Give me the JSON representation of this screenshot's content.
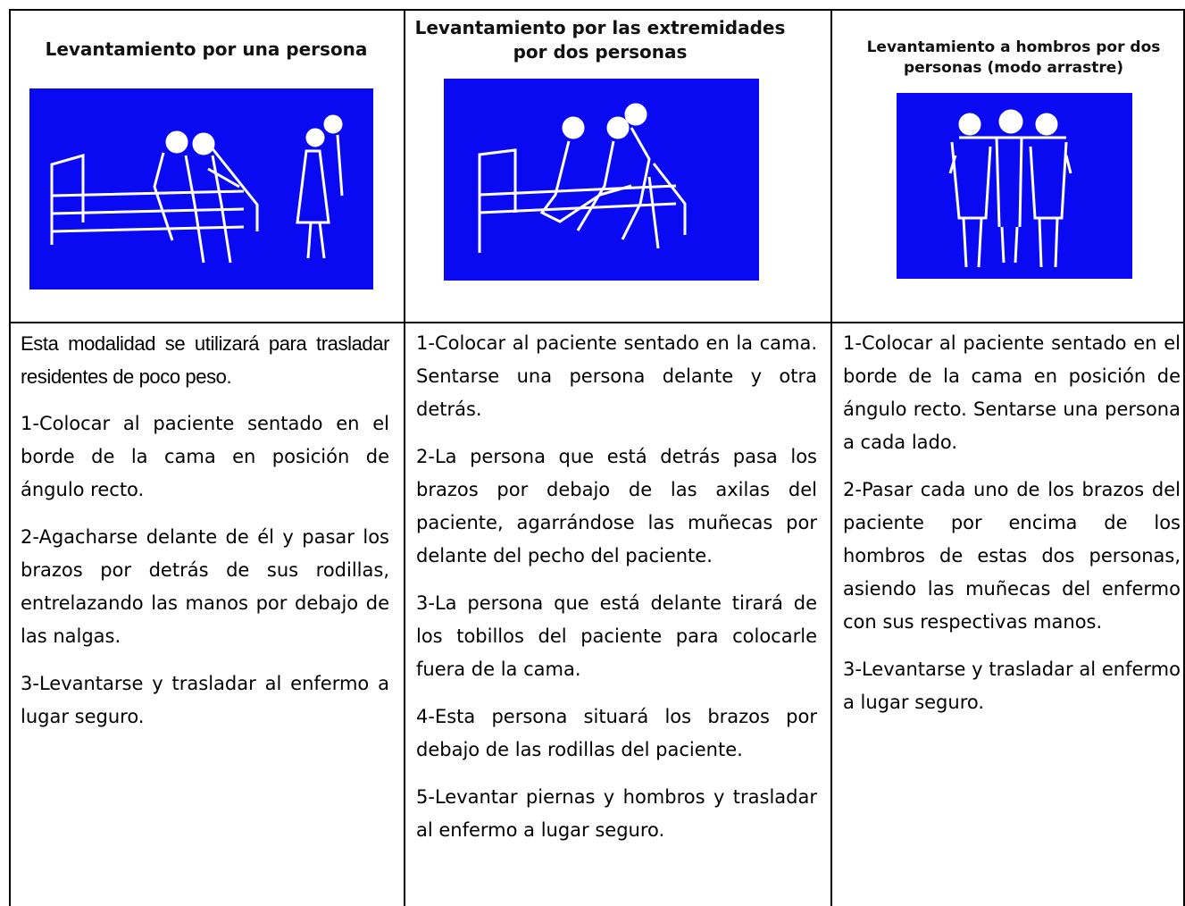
{
  "table": {
    "headers": [
      "Levantamiento por una persona",
      "Levantamiento por las extremidades por dos personas",
      "Levantamiento a hombros por dos personas (modo arrastre)"
    ],
    "columns": [
      {
        "intro": "Esta modalidad se utilizará para trasladar residentes de poco peso.",
        "steps": [
          "1-Colocar al paciente sentado en el borde de la cama en posición de ángulo recto.",
          "2-Agacharse delante de él y pasar los brazos por detrás de sus rodillas, entrelazando las manos por debajo de las nalgas.",
          "3-Levantarse y trasladar al enfermo a lugar seguro."
        ]
      },
      {
        "steps": [
          "1-Colocar al paciente sentado en la cama. Sentarse una persona delante y otra detrás.",
          "2-La persona que está detrás pasa los brazos por debajo de las axilas del paciente, agarrándose las muñecas por delante del pecho del paciente.",
          "3-La persona que está delante tirará de los tobillos del paciente para colocarle fuera de la cama.",
          "4-Esta persona situará los brazos por debajo de las rodillas del paciente.",
          "5-Levantar piernas y hombros y trasladar al enfermo a lugar seguro."
        ]
      },
      {
        "steps": [
          "1-Colocar al paciente sentado en el borde de la cama en posición de ángulo recto. Sentarse una persona a cada lado.",
          "2-Pasar cada uno de los brazos del paciente por encima de los hombros de estas dos personas, asiendo las muñecas del enfermo con sus respectivas manos.",
          "3-Levantarse y trasladar al enfermo a lugar seguro."
        ]
      }
    ]
  }
}
